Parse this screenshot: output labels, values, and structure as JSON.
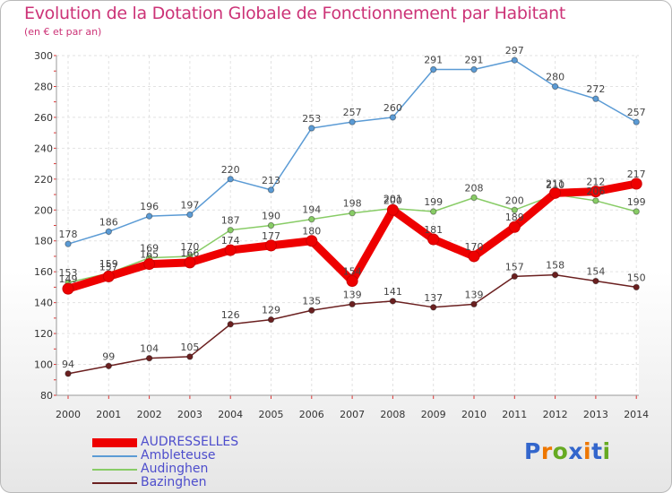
{
  "title": "Evolution de la Dotation Globale de Fonctionnement par Habitant",
  "subtitle": "(en € et par an)",
  "brand": {
    "letters": [
      "P",
      "r",
      "o",
      "x",
      "i",
      "t",
      "i"
    ],
    "colors": [
      "#3366cc",
      "#ee7700",
      "#66aa22",
      "#3366cc",
      "#ee7700",
      "#3366cc",
      "#66aa22"
    ]
  },
  "chart_data": {
    "type": "line",
    "title": "Evolution de la Dotation Globale de Fonctionnement par Habitant",
    "subtitle": "(en € et par an)",
    "x": [
      "2000",
      "2001",
      "2002",
      "2003",
      "2004",
      "2005",
      "2006",
      "2007",
      "2008",
      "2009",
      "2010",
      "2011",
      "2012",
      "2013",
      "2014"
    ],
    "ylim": [
      80,
      300
    ],
    "yticks": [
      80,
      100,
      120,
      140,
      160,
      180,
      200,
      220,
      240,
      260,
      280,
      300
    ],
    "grid": true,
    "legend_position": "bottom-left",
    "series": [
      {
        "name": "AUDRESSELLES",
        "color": "#ee0000",
        "emphasis": true,
        "values": [
          149,
          157,
          165,
          166,
          174,
          177,
          180,
          154,
          200,
          181,
          170,
          189,
          211,
          212,
          217
        ]
      },
      {
        "name": "Ambleteuse",
        "color": "#5b9bd5",
        "emphasis": false,
        "values": [
          178,
          186,
          196,
          197,
          220,
          213,
          253,
          257,
          260,
          291,
          291,
          297,
          280,
          272,
          257
        ]
      },
      {
        "name": "Audinghen",
        "color": "#88cc66",
        "emphasis": false,
        "values": [
          153,
          159,
          169,
          170,
          187,
          190,
          194,
          198,
          201,
          199,
          208,
          200,
          210,
          206,
          199
        ]
      },
      {
        "name": "Bazinghen",
        "color": "#6b2020",
        "emphasis": false,
        "values": [
          94,
          99,
          104,
          105,
          126,
          129,
          135,
          139,
          141,
          137,
          139,
          157,
          158,
          154,
          150
        ]
      }
    ]
  }
}
